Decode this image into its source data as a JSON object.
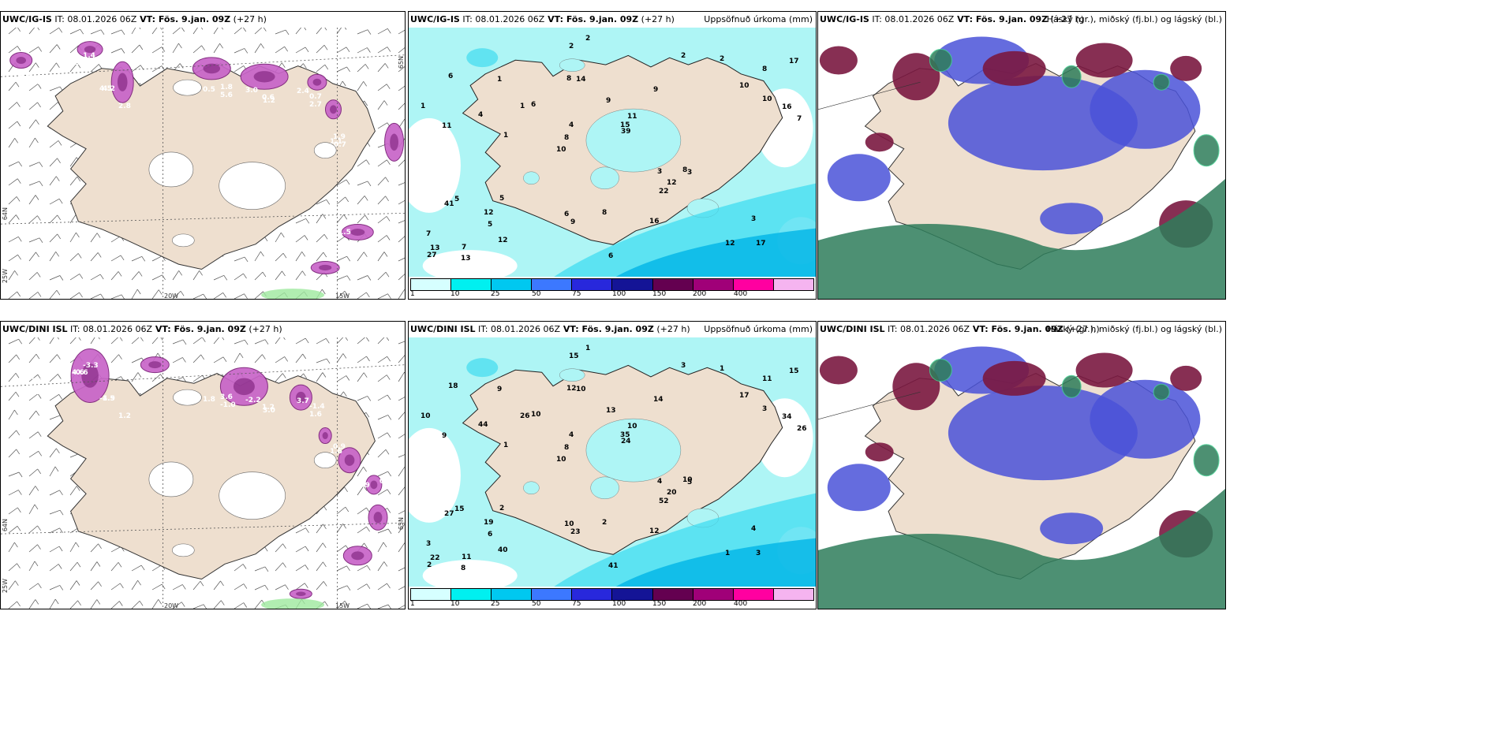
{
  "panels": [
    {
      "model": "UWC/IG-IS",
      "it_prefix": " IT: ",
      "init": "08.01.2026 06Z",
      "vt_prefix": " VT: ",
      "valid": "Fös. 9.jan. 09Z",
      "lead": " (+27 h)",
      "title_right": "",
      "axes": {
        "lat_left": "64N",
        "lat_left2": "25W",
        "lon1": "20W",
        "lon2": "15W",
        "lat_right": "65N"
      },
      "labels": [
        "4.1",
        "1.9",
        "4.2",
        "1.8",
        "1.2",
        "2.4",
        "1.1",
        "5.1",
        "4.0",
        "3.7",
        "1.6",
        "1.4",
        "4.5",
        "5.6",
        "3.0",
        "2.7",
        "1.9",
        "2.9",
        "1.5",
        "1.7",
        "1.6",
        "2.9",
        "2.8",
        "0.5",
        "0.6",
        "0.7",
        "0.7"
      ]
    },
    {
      "model": "UWC/IG-IS",
      "it_prefix": " IT: ",
      "init": "08.01.2026 06Z",
      "vt_prefix": " VT: ",
      "valid": "Fös. 9.jan. 09Z",
      "lead": " (+27 h)",
      "title_right": "Uppsöfnuð úrkoma (mm)",
      "labels": [
        "17",
        "11",
        "8",
        "10",
        "9",
        "7",
        "8",
        "9",
        "5",
        "6",
        "7",
        "5",
        "14",
        "11",
        "3",
        "6",
        "2",
        "7",
        "3",
        "10",
        "8",
        "6",
        "4",
        "1",
        "2",
        "5",
        "12",
        "3",
        "8",
        "6",
        "1",
        "4",
        "22",
        "12",
        "16",
        "15",
        "13",
        "9",
        "39",
        "41",
        "10",
        "17",
        "12",
        "16",
        "12",
        "13",
        "27",
        "8",
        "2",
        "2",
        "1",
        "1"
      ],
      "colorbar": {
        "colors": [
          "#d6ffff",
          "#00f0f0",
          "#00c8f0",
          "#3c78ff",
          "#2828dc",
          "#141496",
          "#640050",
          "#a00078",
          "#ff00a0",
          "#f5b4f0"
        ],
        "ticks": [
          "1",
          "10",
          "25",
          "50",
          "75",
          "100",
          "150",
          "200",
          "400"
        ]
      }
    },
    {
      "model": "UWC/IG-IS",
      "it_prefix": " IT: ",
      "init": "08.01.2026 06Z",
      "vt_prefix": " VT: ",
      "valid": "Fös. 9.jan. 09Z",
      "lead": " (+27 h)",
      "title_right": "Háský (gr.), miðský (fj.bl.) og lágský (bl.)"
    },
    {
      "model": "UWC/DINI ISL",
      "it_prefix": " IT: ",
      "init": "08.01.2026 06Z",
      "vt_prefix": " VT: ",
      "valid": "Fös. 9.jan. 09Z",
      "lead": " (+27 h)",
      "title_right": "",
      "axes": {
        "lat_left": "64N",
        "lat_left2": "25W",
        "lon1": "20W",
        "lon2": "15W",
        "lat_right": "65N"
      },
      "labels": [
        "5.5",
        "4.6",
        "4.9",
        "3.6",
        "3.0",
        "3.7",
        "1.6",
        "0.9",
        "2.2",
        "3.6",
        "1.1",
        "-3.3",
        "-1.5",
        "-1.0",
        "-2.2",
        "1.6",
        "0.9",
        "0.6",
        "-3.1",
        "3.4",
        "-1.5",
        "-0.6",
        "1.2",
        "1.8",
        "1.2",
        "-1.4"
      ]
    },
    {
      "model": "UWC/DINI ISL",
      "it_prefix": " IT: ",
      "init": "08.01.2026 06Z",
      "vt_prefix": " VT: ",
      "valid": "Fös. 9.jan. 09Z",
      "lead": " (+27 h)",
      "title_right": "Uppsöfnuð úrkoma (mm)",
      "labels": [
        "3",
        "9",
        "11",
        "10",
        "14",
        "11",
        "12",
        "13",
        "15",
        "10",
        "3",
        "6",
        "10",
        "10",
        "5",
        "18",
        "15",
        "26",
        "4",
        "3",
        "8",
        "10",
        "4",
        "9",
        "3",
        "2",
        "1",
        "4",
        "10",
        "41",
        "26",
        "44",
        "52",
        "40",
        "34",
        "35",
        "22",
        "23",
        "24",
        "27",
        "17",
        "15",
        "20",
        "12",
        "19",
        "8",
        "2",
        "2",
        "1",
        "1",
        "1",
        "10"
      ],
      "colorbar": {
        "colors": [
          "#d6ffff",
          "#00f0f0",
          "#00c8f0",
          "#3c78ff",
          "#2828dc",
          "#141496",
          "#640050",
          "#a00078",
          "#ff00a0",
          "#f5b4f0"
        ],
        "ticks": [
          "1",
          "10",
          "25",
          "50",
          "75",
          "100",
          "150",
          "200",
          "400"
        ]
      }
    },
    {
      "model": "UWC/DINI ISL",
      "it_prefix": " IT: ",
      "init": "08.01.2026 06Z",
      "vt_prefix": " VT: ",
      "valid": "Fös. 9.jan. 09Z",
      "lead": " (+27 h)",
      "title_right": "Háský (gr.), miðský (fj.bl.) og lágský (bl.)"
    }
  ],
  "colors": {
    "land": "#eedfcf",
    "precip_light": "#aef5f5",
    "precip_mid": "#40dcf0",
    "precip_strong": "#00b4e6",
    "ice": "#c864c8",
    "ice_dark": "#7a1e78",
    "high_cloud": "#2e7d5a",
    "mid_cloud": "#7a1840",
    "low_cloud": "#4a52d8"
  }
}
